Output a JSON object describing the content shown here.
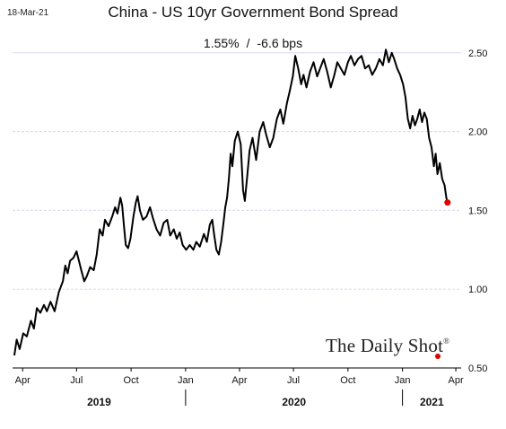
{
  "date_stamp": "18-Mar-21",
  "logo": {
    "text": "The Daily Shot",
    "mark": "®"
  },
  "chart_data": {
    "type": "line",
    "title": "China - US 10yr Government Bond Spread",
    "subtitle_value": "1.55%",
    "subtitle_sep": "/",
    "subtitle_change": "-6.6 bps",
    "xlabel": "",
    "ylabel": "",
    "ylim": [
      0.5,
      2.55
    ],
    "yticks": [
      "2.50",
      "2.00",
      "1.50",
      "1.00",
      "0.50"
    ],
    "ytick_values": [
      2.5,
      2.0,
      1.5,
      1.0,
      0.5
    ],
    "xticks": [
      "Apr",
      "Jul",
      "Oct",
      "Jan",
      "Apr",
      "Jul",
      "Oct",
      "Jan",
      "Apr"
    ],
    "xtick_values": [
      "2019-04-01",
      "2019-07-01",
      "2019-10-01",
      "2020-01-01",
      "2020-04-01",
      "2020-07-01",
      "2020-10-01",
      "2021-01-01",
      "2021-04-01"
    ],
    "years": [
      "2019",
      "2020",
      "2021"
    ],
    "grid": "horizontal",
    "last_point_color": "#e00000",
    "series": [
      {
        "line_color": "#000000",
        "points": [
          [
            "2019-03-18",
            0.58
          ],
          [
            "2019-03-22",
            0.68
          ],
          [
            "2019-03-27",
            0.62
          ],
          [
            "2019-04-02",
            0.72
          ],
          [
            "2019-04-08",
            0.7
          ],
          [
            "2019-04-15",
            0.8
          ],
          [
            "2019-04-20",
            0.75
          ],
          [
            "2019-04-25",
            0.88
          ],
          [
            "2019-05-01",
            0.85
          ],
          [
            "2019-05-07",
            0.9
          ],
          [
            "2019-05-12",
            0.86
          ],
          [
            "2019-05-18",
            0.92
          ],
          [
            "2019-05-25",
            0.86
          ],
          [
            "2019-06-01",
            0.98
          ],
          [
            "2019-06-08",
            1.05
          ],
          [
            "2019-06-12",
            1.15
          ],
          [
            "2019-06-16",
            1.1
          ],
          [
            "2019-06-20",
            1.18
          ],
          [
            "2019-06-26",
            1.2
          ],
          [
            "2019-07-01",
            1.24
          ],
          [
            "2019-07-05",
            1.18
          ],
          [
            "2019-07-09",
            1.12
          ],
          [
            "2019-07-14",
            1.05
          ],
          [
            "2019-07-18",
            1.08
          ],
          [
            "2019-07-24",
            1.14
          ],
          [
            "2019-07-30",
            1.12
          ],
          [
            "2019-08-04",
            1.22
          ],
          [
            "2019-08-09",
            1.38
          ],
          [
            "2019-08-14",
            1.34
          ],
          [
            "2019-08-18",
            1.44
          ],
          [
            "2019-08-24",
            1.4
          ],
          [
            "2019-08-30",
            1.46
          ],
          [
            "2019-09-04",
            1.52
          ],
          [
            "2019-09-08",
            1.48
          ],
          [
            "2019-09-13",
            1.58
          ],
          [
            "2019-09-16",
            1.53
          ],
          [
            "2019-09-19",
            1.4
          ],
          [
            "2019-09-22",
            1.28
          ],
          [
            "2019-09-26",
            1.26
          ],
          [
            "2019-09-30",
            1.32
          ],
          [
            "2019-10-05",
            1.46
          ],
          [
            "2019-10-09",
            1.55
          ],
          [
            "2019-10-12",
            1.59
          ],
          [
            "2019-10-16",
            1.5
          ],
          [
            "2019-10-21",
            1.44
          ],
          [
            "2019-10-27",
            1.46
          ],
          [
            "2019-11-02",
            1.52
          ],
          [
            "2019-11-07",
            1.45
          ],
          [
            "2019-11-13",
            1.38
          ],
          [
            "2019-11-19",
            1.34
          ],
          [
            "2019-11-25",
            1.42
          ],
          [
            "2019-12-01",
            1.44
          ],
          [
            "2019-12-06",
            1.34
          ],
          [
            "2019-12-12",
            1.38
          ],
          [
            "2019-12-17",
            1.32
          ],
          [
            "2019-12-22",
            1.36
          ],
          [
            "2019-12-27",
            1.28
          ],
          [
            "2020-01-02",
            1.25
          ],
          [
            "2020-01-08",
            1.28
          ],
          [
            "2020-01-14",
            1.25
          ],
          [
            "2020-01-19",
            1.3
          ],
          [
            "2020-01-25",
            1.27
          ],
          [
            "2020-02-01",
            1.35
          ],
          [
            "2020-02-06",
            1.3
          ],
          [
            "2020-02-11",
            1.41
          ],
          [
            "2020-02-15",
            1.44
          ],
          [
            "2020-02-18",
            1.35
          ],
          [
            "2020-02-22",
            1.25
          ],
          [
            "2020-02-26",
            1.22
          ],
          [
            "2020-03-01",
            1.3
          ],
          [
            "2020-03-05",
            1.42
          ],
          [
            "2020-03-08",
            1.52
          ],
          [
            "2020-03-11",
            1.58
          ],
          [
            "2020-03-14",
            1.7
          ],
          [
            "2020-03-17",
            1.86
          ],
          [
            "2020-03-20",
            1.78
          ],
          [
            "2020-03-24",
            1.94
          ],
          [
            "2020-03-29",
            2.0
          ],
          [
            "2020-04-03",
            1.92
          ],
          [
            "2020-04-07",
            1.63
          ],
          [
            "2020-04-10",
            1.56
          ],
          [
            "2020-04-14",
            1.72
          ],
          [
            "2020-04-18",
            1.88
          ],
          [
            "2020-04-23",
            1.96
          ],
          [
            "2020-04-29",
            1.82
          ],
          [
            "2020-05-05",
            2.0
          ],
          [
            "2020-05-11",
            2.06
          ],
          [
            "2020-05-16",
            1.98
          ],
          [
            "2020-05-22",
            1.9
          ],
          [
            "2020-05-28",
            1.96
          ],
          [
            "2020-06-03",
            2.08
          ],
          [
            "2020-06-09",
            2.14
          ],
          [
            "2020-06-14",
            2.05
          ],
          [
            "2020-06-20",
            2.18
          ],
          [
            "2020-06-25",
            2.26
          ],
          [
            "2020-06-30",
            2.35
          ],
          [
            "2020-07-04",
            2.48
          ],
          [
            "2020-07-09",
            2.4
          ],
          [
            "2020-07-14",
            2.3
          ],
          [
            "2020-07-18",
            2.36
          ],
          [
            "2020-07-23",
            2.28
          ],
          [
            "2020-07-29",
            2.38
          ],
          [
            "2020-08-04",
            2.44
          ],
          [
            "2020-08-10",
            2.35
          ],
          [
            "2020-08-15",
            2.4
          ],
          [
            "2020-08-21",
            2.46
          ],
          [
            "2020-08-27",
            2.38
          ],
          [
            "2020-09-02",
            2.28
          ],
          [
            "2020-09-08",
            2.36
          ],
          [
            "2020-09-13",
            2.44
          ],
          [
            "2020-09-19",
            2.4
          ],
          [
            "2020-09-25",
            2.36
          ],
          [
            "2020-10-01",
            2.44
          ],
          [
            "2020-10-06",
            2.48
          ],
          [
            "2020-10-12",
            2.42
          ],
          [
            "2020-10-18",
            2.46
          ],
          [
            "2020-10-24",
            2.48
          ],
          [
            "2020-10-30",
            2.4
          ],
          [
            "2020-11-05",
            2.42
          ],
          [
            "2020-11-11",
            2.36
          ],
          [
            "2020-11-17",
            2.4
          ],
          [
            "2020-11-23",
            2.46
          ],
          [
            "2020-11-29",
            2.42
          ],
          [
            "2020-12-04",
            2.52
          ],
          [
            "2020-12-09",
            2.44
          ],
          [
            "2020-12-14",
            2.5
          ],
          [
            "2020-12-18",
            2.46
          ],
          [
            "2020-12-23",
            2.4
          ],
          [
            "2020-12-28",
            2.36
          ],
          [
            "2021-01-02",
            2.3
          ],
          [
            "2021-01-06",
            2.22
          ],
          [
            "2021-01-10",
            2.08
          ],
          [
            "2021-01-14",
            2.02
          ],
          [
            "2021-01-18",
            2.1
          ],
          [
            "2021-01-22",
            2.04
          ],
          [
            "2021-01-26",
            2.08
          ],
          [
            "2021-01-30",
            2.14
          ],
          [
            "2021-02-03",
            2.06
          ],
          [
            "2021-02-07",
            2.12
          ],
          [
            "2021-02-11",
            2.08
          ],
          [
            "2021-02-15",
            1.96
          ],
          [
            "2021-02-19",
            1.9
          ],
          [
            "2021-02-23",
            1.78
          ],
          [
            "2021-02-26",
            1.86
          ],
          [
            "2021-03-01",
            1.73
          ],
          [
            "2021-03-05",
            1.8
          ],
          [
            "2021-03-09",
            1.7
          ],
          [
            "2021-03-13",
            1.66
          ],
          [
            "2021-03-16",
            1.58
          ],
          [
            "2021-03-18",
            1.55
          ]
        ]
      }
    ]
  }
}
